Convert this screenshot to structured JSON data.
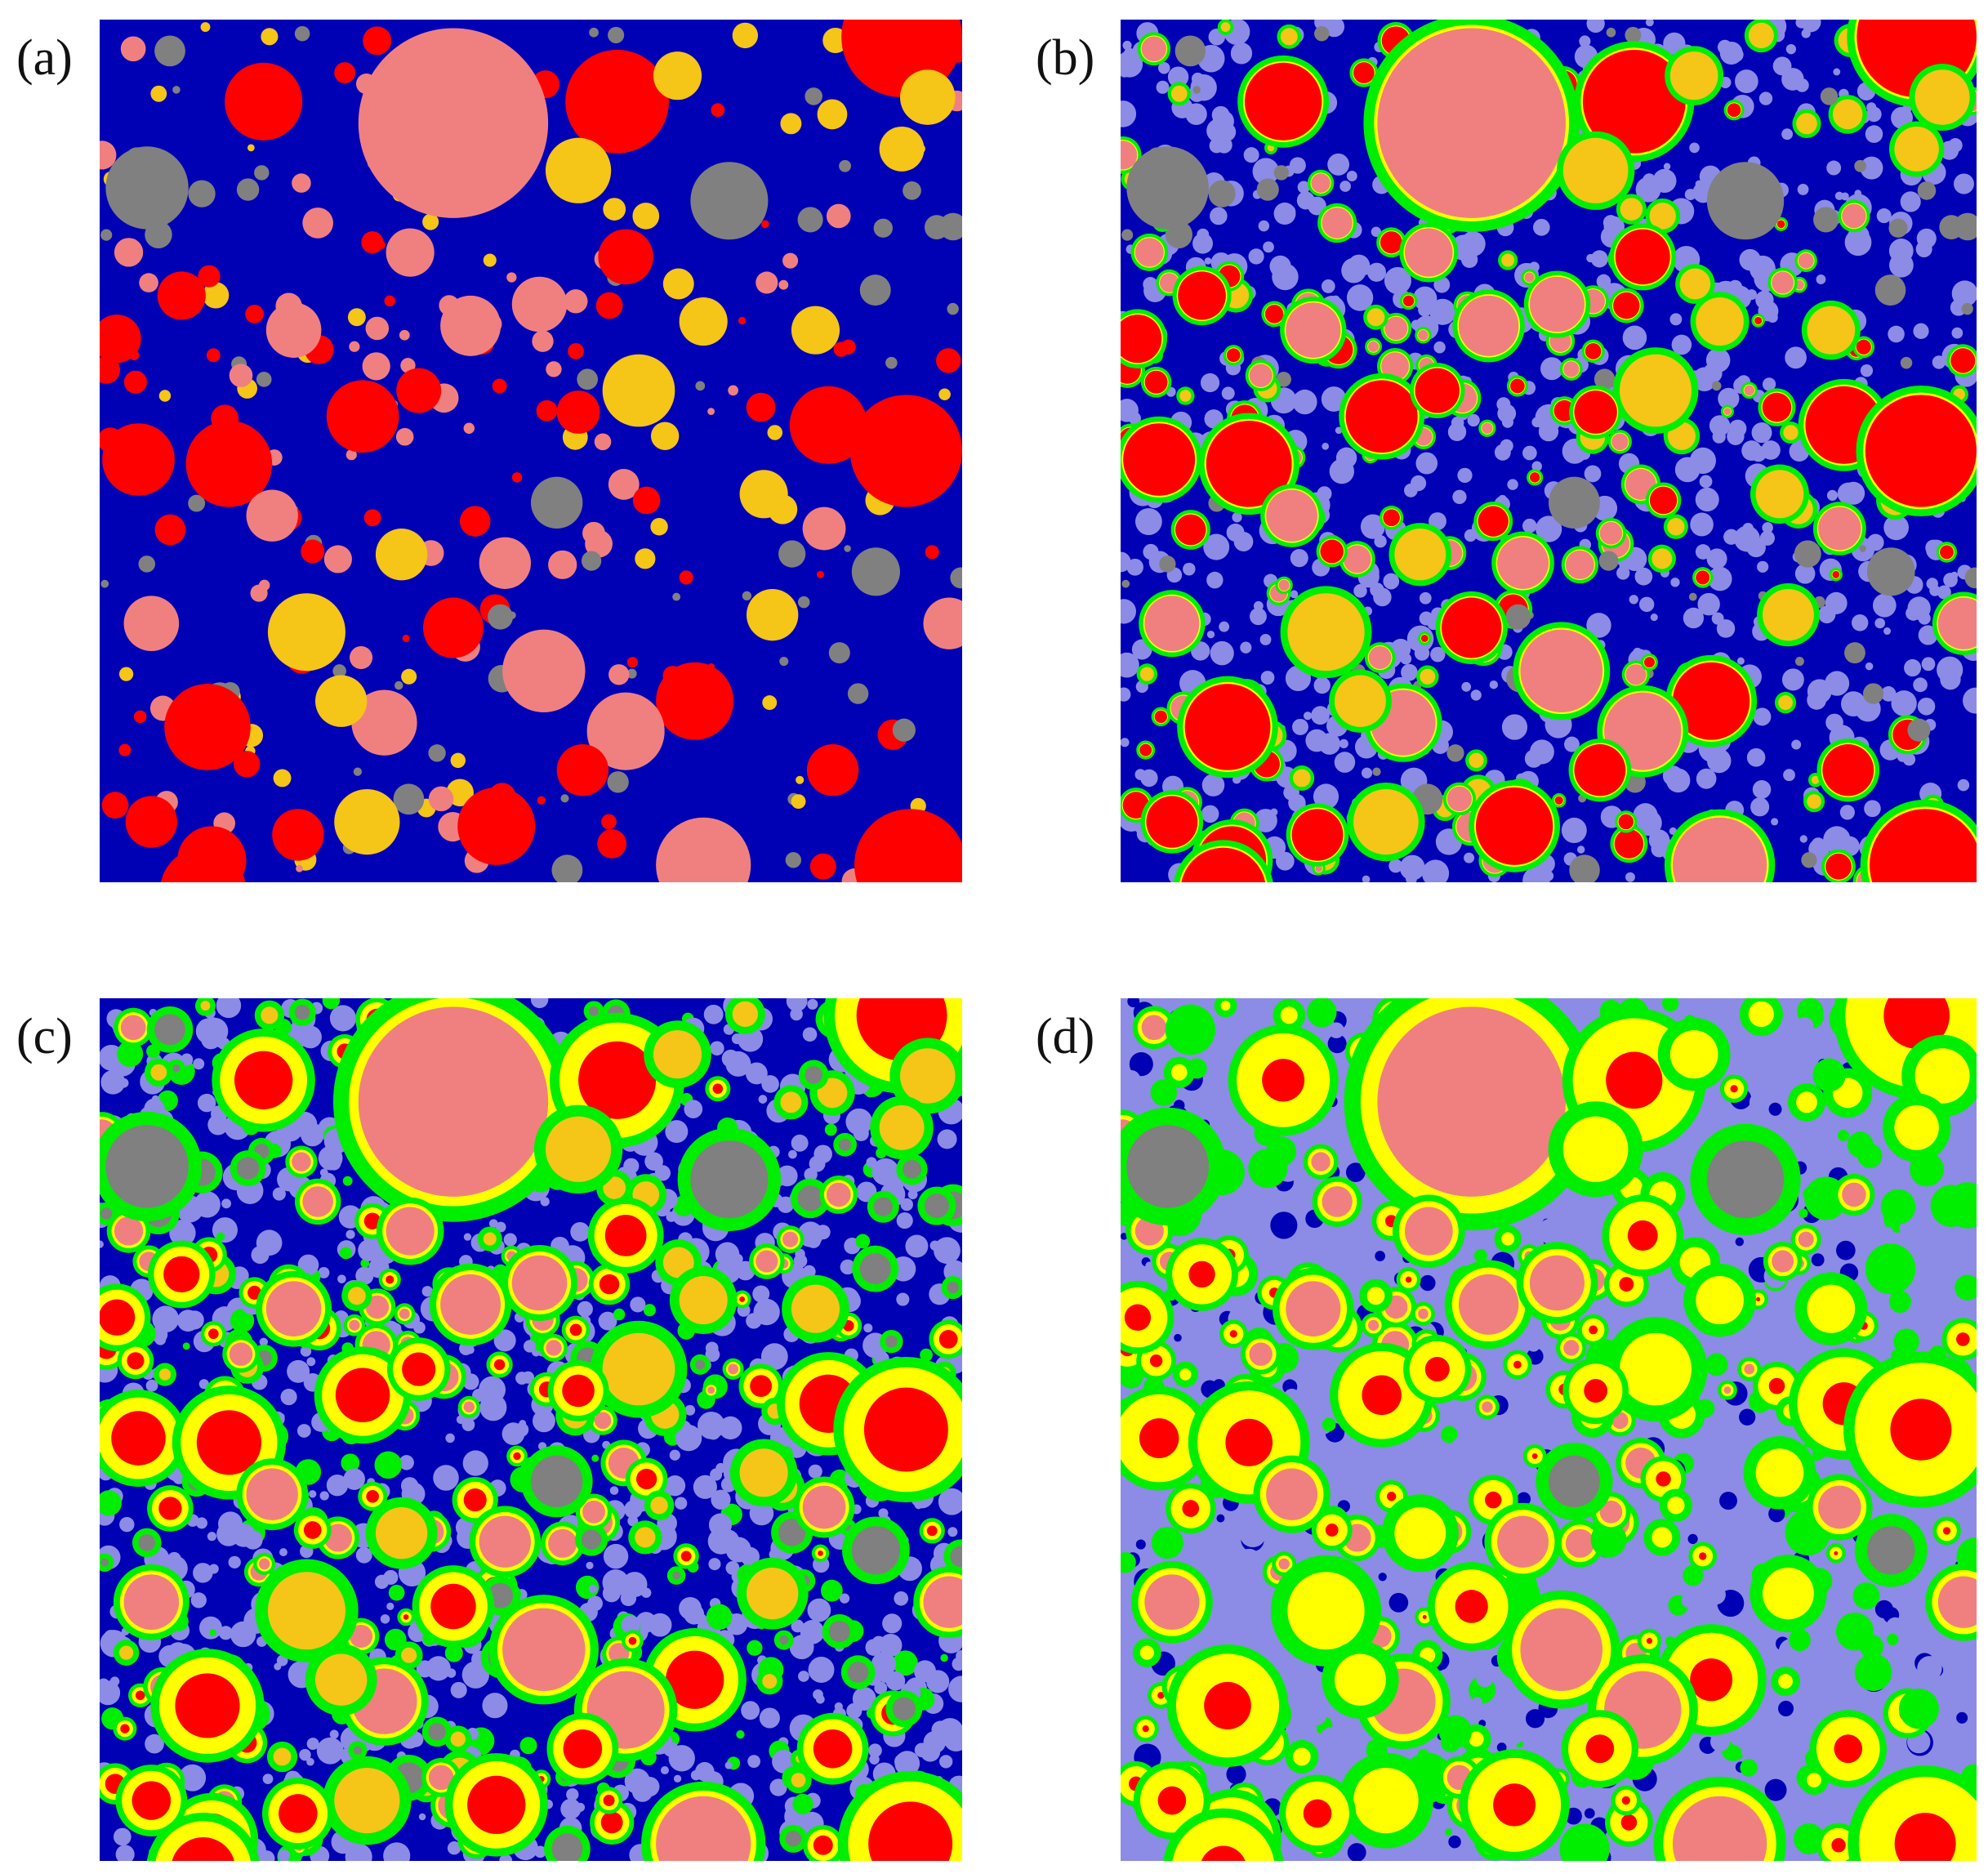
{
  "figure": {
    "panels": [
      {
        "label": "(a)"
      },
      {
        "label": "(b)"
      },
      {
        "label": "(c)"
      },
      {
        "label": "(d)"
      }
    ]
  },
  "colors": {
    "matrix_dark": "#0000b4",
    "matrix_light": "#8c8ce6",
    "red": "#ff0000",
    "pink": "#f08080",
    "gold": "#f5c518",
    "gray": "#808080",
    "ring_yellow": "#ffff00",
    "ring_green": "#00ee00"
  }
}
